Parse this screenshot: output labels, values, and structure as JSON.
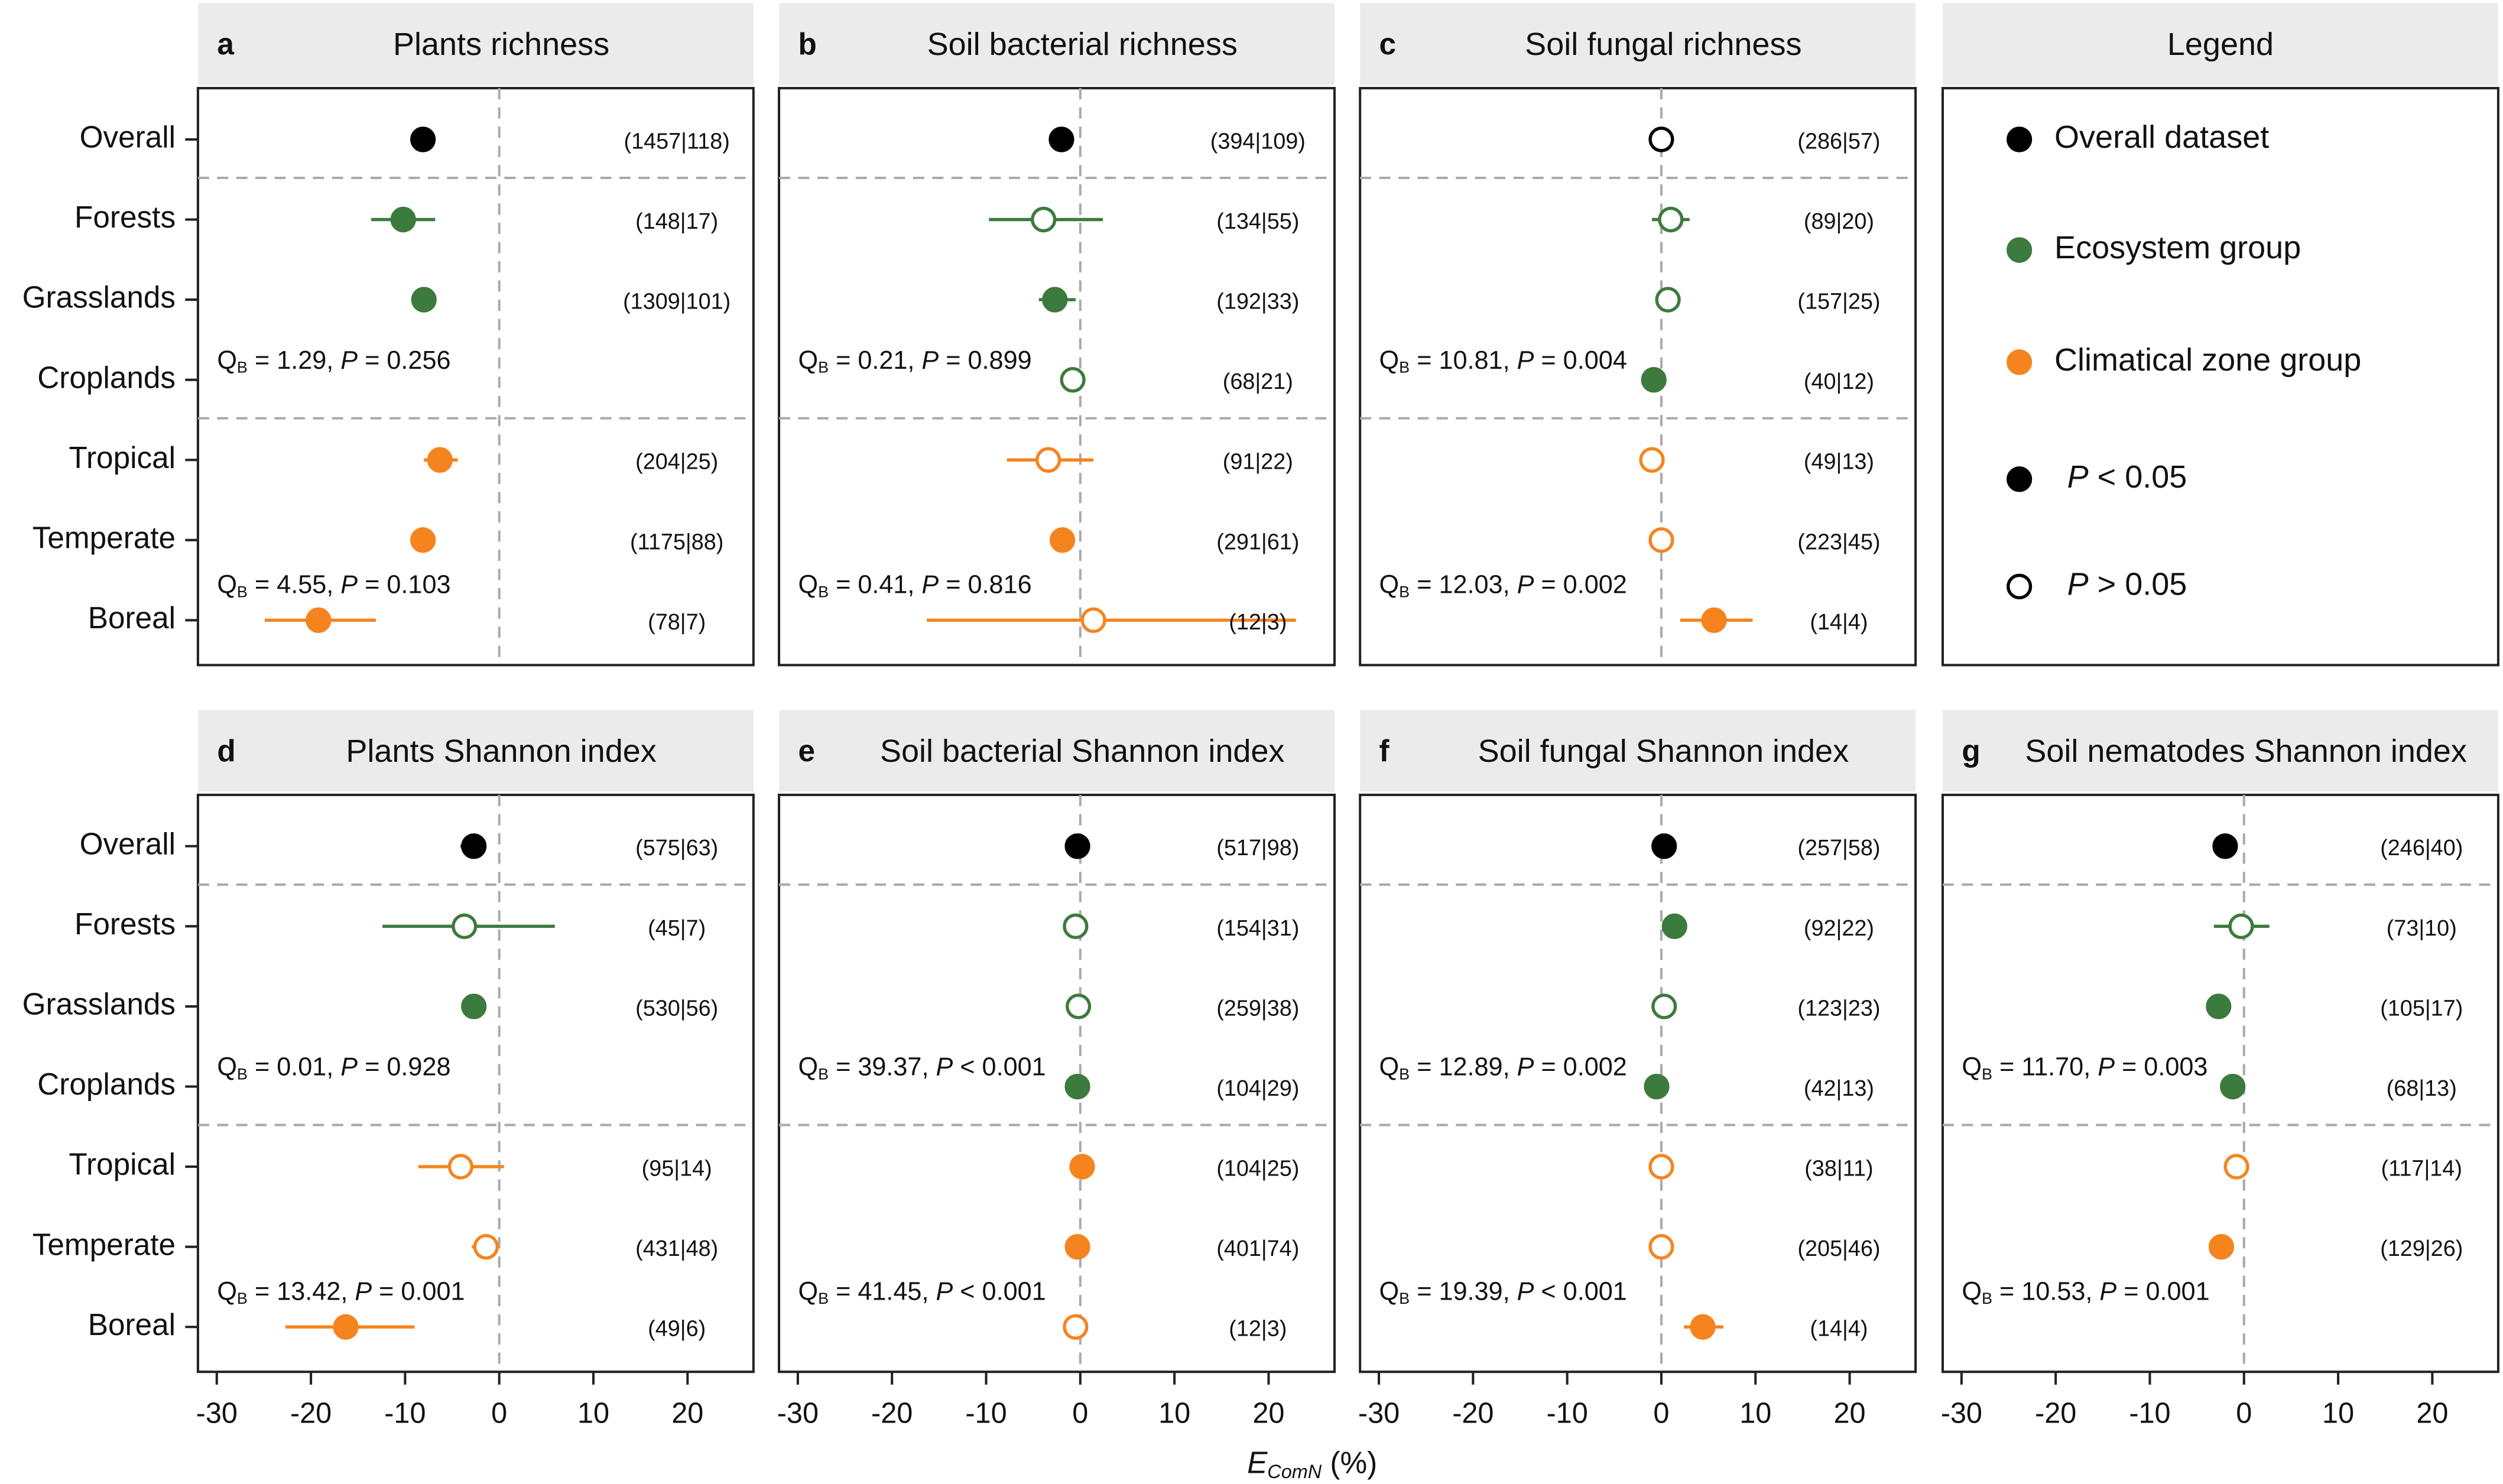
{
  "rows": [
    "Overall",
    "Forests",
    "Grasslands",
    "Croplands",
    "Tropical",
    "Temperate",
    "Boreal"
  ],
  "row_colors": [
    "#000000",
    "#3d7a3d",
    "#3d7a3d",
    "#3d7a3d",
    "#f5841f",
    "#f5841f",
    "#f5841f"
  ],
  "q_label": "Q",
  "q_sub": "B",
  "p_label": "P",
  "xlabel_parts": [
    "E",
    "ComN",
    " (%)"
  ],
  "refline": 0,
  "legend": {
    "title": "Legend",
    "items": [
      {
        "label": "Overall dataset",
        "color": "#000000",
        "filled": true
      },
      {
        "label": "Ecosystem group",
        "color": "#3d7a3d",
        "filled": true
      },
      {
        "label": "Climatical zone group",
        "color": "#f5841f",
        "filled": true
      },
      {
        "italic": "P",
        "label": " < 0.05",
        "color": "#000000",
        "filled": true
      },
      {
        "italic": "P",
        "label": " > 0.05",
        "color": "#000000",
        "filled": false
      }
    ]
  },
  "chart_data": [
    {
      "type": "forest",
      "letter": "a",
      "title": "Plants richness",
      "xlim": [
        -32,
        27
      ],
      "xticks": [
        -30,
        -20,
        -10,
        0,
        10,
        20
      ],
      "values": [
        -8.1,
        -10.2,
        -8.0,
        null,
        -6.3,
        -8.1,
        -19.2
      ],
      "ci": [
        [
          -9.0,
          -7.2
        ],
        [
          -13.6,
          -6.8
        ],
        [
          -9.0,
          -7.0
        ],
        null,
        [
          -8.0,
          -4.4
        ],
        [
          -9.0,
          -7.3
        ],
        [
          -24.9,
          -13.1
        ]
      ],
      "significant": [
        true,
        true,
        true,
        null,
        true,
        true,
        true
      ],
      "n_labels": [
        "(1457|118)",
        "(148|17)",
        "(1309|101)",
        null,
        "(204|25)",
        "(1175|88)",
        "(78|7)"
      ],
      "stats": [
        {
          "q": " = 1.29, ",
          "p": " = 0.256"
        },
        {
          "q": " = 4.55, ",
          "p": " = 0.103"
        }
      ]
    },
    {
      "type": "forest",
      "letter": "b",
      "title": "Soil bacterial richness",
      "xlim": [
        -32,
        27
      ],
      "xticks": [
        -30,
        -20,
        -10,
        0,
        10,
        20
      ],
      "values": [
        -2.0,
        -3.9,
        -2.7,
        -0.8,
        -3.4,
        -1.9,
        1.4
      ],
      "ci": [
        [
          -3.0,
          -1.0
        ],
        [
          -9.7,
          2.4
        ],
        [
          -4.4,
          -0.5
        ],
        [
          -1.8,
          0.2
        ],
        [
          -7.8,
          1.4
        ],
        [
          -2.9,
          -0.9
        ],
        [
          -16.3,
          22.9
        ]
      ],
      "significant": [
        true,
        false,
        true,
        false,
        false,
        true,
        false
      ],
      "n_labels": [
        "(394|109)",
        "(134|55)",
        "(192|33)",
        "(68|21)",
        "(91|22)",
        "(291|61)",
        "(12|3)"
      ],
      "stats": [
        {
          "q": " = 0.21, ",
          "p": " = 0.899"
        },
        {
          "q": " = 0.41, ",
          "p": " = 0.816"
        }
      ]
    },
    {
      "type": "forest",
      "letter": "c",
      "title": "Soil fungal richness",
      "xlim": [
        -32,
        27
      ],
      "xticks": [
        -30,
        -20,
        -10,
        0,
        10,
        20
      ],
      "values": [
        0.0,
        1.0,
        0.7,
        -0.8,
        -1.0,
        0.0,
        5.6
      ],
      "ci": [
        [
          -0.5,
          0.5
        ],
        [
          -1.0,
          3.0
        ],
        [
          -0.3,
          1.7
        ],
        [
          -1.3,
          -0.3
        ],
        [
          -2.2,
          0.2
        ],
        [
          -0.7,
          0.7
        ],
        [
          2.0,
          9.7
        ]
      ],
      "significant": [
        false,
        false,
        false,
        true,
        false,
        false,
        true
      ],
      "n_labels": [
        "(286|57)",
        "(89|20)",
        "(157|25)",
        "(40|12)",
        "(49|13)",
        "(223|45)",
        "(14|4)"
      ],
      "stats": [
        {
          "q": " = 10.81, ",
          "p": " = 0.004"
        },
        {
          "q": " = 12.03, ",
          "p": " = 0.002"
        }
      ]
    },
    {
      "type": "forest",
      "letter": "d",
      "title": "Plants Shannon index",
      "xlim": [
        -32,
        27
      ],
      "xticks": [
        -30,
        -20,
        -10,
        0,
        10,
        20
      ],
      "values": [
        -2.7,
        -3.7,
        -2.7,
        null,
        -4.1,
        -1.4,
        -16.3
      ],
      "ci": [
        [
          -4.1,
          -1.4
        ],
        [
          -12.4,
          5.9
        ],
        [
          -3.7,
          -1.7
        ],
        null,
        [
          -8.6,
          0.5
        ],
        [
          -2.9,
          0.0
        ],
        [
          -22.7,
          -9.0
        ]
      ],
      "significant": [
        true,
        false,
        true,
        null,
        false,
        false,
        true
      ],
      "n_labels": [
        "(575|63)",
        "(45|7)",
        "(530|56)",
        null,
        "(95|14)",
        "(431|48)",
        "(49|6)"
      ],
      "stats": [
        {
          "q": " = 0.01, ",
          "p": " = 0.928"
        },
        {
          "q": " = 13.42, ",
          "p": " = 0.001"
        }
      ]
    },
    {
      "type": "forest",
      "letter": "e",
      "title": "Soil bacterial Shannon index",
      "xlim": [
        -32,
        27
      ],
      "xticks": [
        -30,
        -20,
        -10,
        0,
        10,
        20
      ],
      "values": [
        -0.3,
        -0.5,
        -0.2,
        -0.3,
        0.2,
        -0.3,
        -0.5
      ],
      "ci": [
        [
          -0.7,
          0.1
        ],
        [
          -0.9,
          -0.1
        ],
        [
          -0.6,
          0.2
        ],
        [
          -0.7,
          0.1
        ],
        [
          -0.2,
          0.6
        ],
        [
          -0.7,
          0.1
        ],
        [
          -1.5,
          0.5
        ]
      ],
      "significant": [
        true,
        false,
        false,
        true,
        true,
        true,
        false
      ],
      "n_labels": [
        "(517|98)",
        "(154|31)",
        "(259|38)",
        "(104|29)",
        "(104|25)",
        "(401|74)",
        "(12|3)"
      ],
      "stats": [
        {
          "q": " = 39.37, ",
          "p": " < 0.001"
        },
        {
          "q": " = 41.45, ",
          "p": " < 0.001"
        }
      ]
    },
    {
      "type": "forest",
      "letter": "f",
      "title": "Soil fungal Shannon index",
      "xlim": [
        -32,
        27
      ],
      "xticks": [
        -30,
        -20,
        -10,
        0,
        10,
        20
      ],
      "values": [
        0.3,
        1.4,
        0.3,
        -0.5,
        0.0,
        0.0,
        4.4
      ],
      "ci": [
        [
          -0.2,
          0.8
        ],
        [
          0.9,
          1.9
        ],
        [
          -0.3,
          0.9
        ],
        [
          -1.0,
          0.0
        ],
        [
          -0.6,
          0.6
        ],
        [
          -0.5,
          0.5
        ],
        [
          2.4,
          6.6
        ]
      ],
      "significant": [
        true,
        true,
        false,
        true,
        false,
        false,
        true
      ],
      "n_labels": [
        "(257|58)",
        "(92|22)",
        "(123|23)",
        "(42|13)",
        "(38|11)",
        "(205|46)",
        "(14|4)"
      ],
      "stats": [
        {
          "q": " = 12.89, ",
          "p": " = 0.002"
        },
        {
          "q": " = 19.39, ",
          "p": " < 0.001"
        }
      ]
    },
    {
      "type": "forest",
      "letter": "g",
      "title": "Soil nematodes Shannon index",
      "xlim": [
        -32,
        27
      ],
      "xticks": [
        -30,
        -20,
        -10,
        0,
        10,
        20
      ],
      "values": [
        -2.0,
        -0.3,
        -2.7,
        -1.2,
        -0.8,
        -2.4,
        null
      ],
      "ci": [
        [
          -2.5,
          -1.5
        ],
        [
          -3.2,
          2.7
        ],
        [
          -3.2,
          -2.2
        ],
        [
          -1.7,
          -0.7
        ],
        [
          -2.0,
          0.3
        ],
        [
          -2.9,
          -1.9
        ],
        null
      ],
      "significant": [
        true,
        false,
        true,
        true,
        false,
        true,
        null
      ],
      "n_labels": [
        "(246|40)",
        "(73|10)",
        "(105|17)",
        "(68|13)",
        "(117|14)",
        "(129|26)",
        null
      ],
      "stats": [
        {
          "q": " = 11.70, ",
          "p": " = 0.003"
        },
        {
          "q": " = 10.53, ",
          "p": " = 0.001"
        }
      ]
    }
  ]
}
